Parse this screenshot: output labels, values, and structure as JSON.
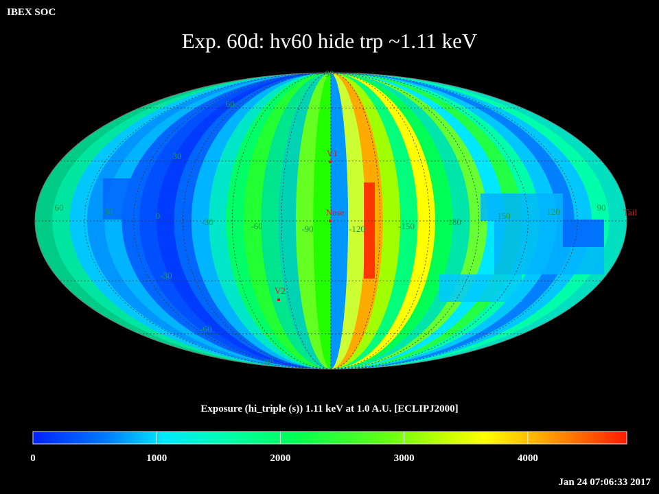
{
  "header": {
    "org": "IBEX SOC",
    "title": "Exp.   60d: hv60 hide trp ~1.11 keV"
  },
  "map": {
    "projection": "Mollweide",
    "center_longitude": -90,
    "latitude_labels": [
      "90",
      "60",
      "30",
      "-30",
      "-60",
      "-90"
    ],
    "longitude_labels": [
      "60",
      "30",
      "0",
      "-30",
      "-60",
      "-90",
      "-120",
      "-150",
      "180",
      "150",
      "120",
      "90"
    ],
    "markers": [
      {
        "label": "V1",
        "color": "#cc2222"
      },
      {
        "label": "Nose",
        "color": "#cc2222"
      },
      {
        "label": "V2",
        "color": "#cc2222"
      },
      {
        "label": "Tail",
        "color": "#cc2222"
      }
    ]
  },
  "colorbar": {
    "caption": "Exposure (hi_triple (s))  1.11 keV at 1.0 A.U. [ECLIPJ2000]",
    "min": 0,
    "max": 4800,
    "ticks": [
      "0",
      "1000",
      "2000",
      "3000",
      "4000"
    ],
    "colors": [
      "#0022ff",
      "#0077ff",
      "#00e8ff",
      "#00ffaa",
      "#00ff55",
      "#66ff11",
      "#ccff00",
      "#ffff00",
      "#ffb000",
      "#ff1a00"
    ]
  },
  "footer": {
    "timestamp": "Jan 24 07:06:33 2017"
  }
}
